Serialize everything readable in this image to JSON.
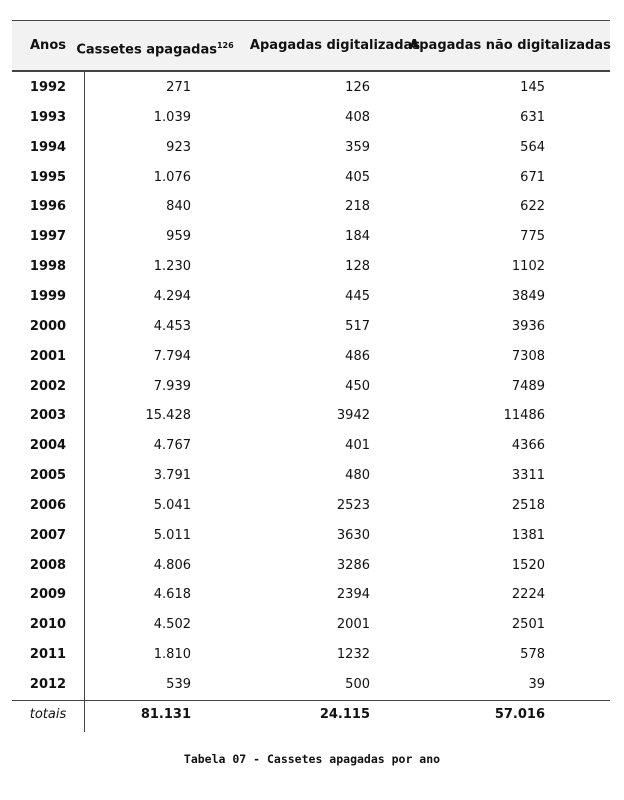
{
  "table": {
    "header": [
      "Anos",
      "Cassetes apagadas",
      "Apagadas digitalizadas",
      "Apagadas não digitalizadas"
    ],
    "header_footnote": "126",
    "rows": [
      [
        "1992",
        "271",
        "126",
        "145"
      ],
      [
        "1993",
        "1.039",
        "408",
        "631"
      ],
      [
        "1994",
        "923",
        "359",
        "564"
      ],
      [
        "1995",
        "1.076",
        "405",
        "671"
      ],
      [
        "1996",
        "840",
        "218",
        "622"
      ],
      [
        "1997",
        "959",
        "184",
        "775"
      ],
      [
        "1998",
        "1.230",
        "128",
        "1102"
      ],
      [
        "1999",
        "4.294",
        "445",
        "3849"
      ],
      [
        "2000",
        "4.453",
        "517",
        "3936"
      ],
      [
        "2001",
        "7.794",
        "486",
        "7308"
      ],
      [
        "2002",
        "7.939",
        "450",
        "7489"
      ],
      [
        "2003",
        "15.428",
        "3942",
        "11486"
      ],
      [
        "2004",
        "4.767",
        "401",
        "4366"
      ],
      [
        "2005",
        "3.791",
        "480",
        "3311"
      ],
      [
        "2006",
        "5.041",
        "2523",
        "2518"
      ],
      [
        "2007",
        "5.011",
        "3630",
        "1381"
      ],
      [
        "2008",
        "4.806",
        "3286",
        "1520"
      ],
      [
        "2009",
        "4.618",
        "2394",
        "2224"
      ],
      [
        "2010",
        "4.502",
        "2001",
        "2501"
      ],
      [
        "2011",
        "1.810",
        "1232",
        "578"
      ],
      [
        "2012",
        "539",
        "500",
        "39"
      ]
    ],
    "totals": [
      "totais",
      "81.131",
      "24.115",
      "57.016"
    ]
  },
  "caption": "Tabela 07 - Cassetes apagadas por ano"
}
